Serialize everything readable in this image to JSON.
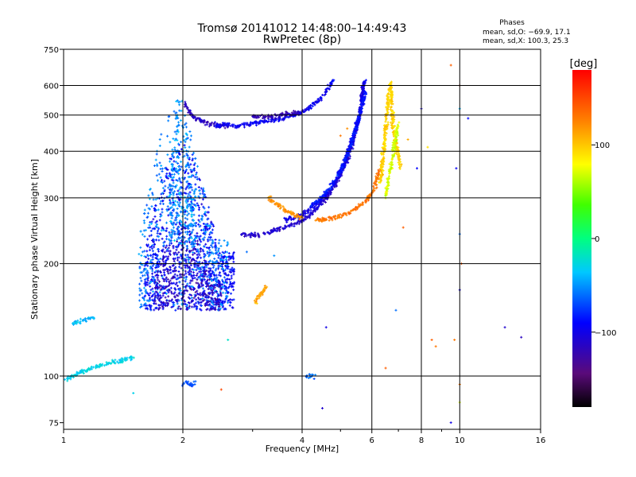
{
  "chart_data": {
    "type": "scatter",
    "title": "Tromsø 20141012 14:48:00–14:49:43",
    "subtitle": "RwPretec (8p)",
    "xlabel": "Frequency [MHz]",
    "ylabel": "Stationary phase Virtual Height [km]",
    "x_scale": "log",
    "y_scale": "log",
    "xlim": [
      1,
      16
    ],
    "ylim": [
      72,
      750
    ],
    "x_ticks": [
      1,
      2,
      4,
      6,
      8,
      10,
      16
    ],
    "y_ticks": [
      75,
      100,
      200,
      300,
      400,
      500,
      600,
      750
    ],
    "x_minor_ticks": [
      3,
      5,
      7,
      9
    ],
    "grid": true,
    "stats": {
      "header": "Phases",
      "line_o": "mean, sd,O: −69.9, 17.1",
      "line_x": "mean, sd,X: 100.3, 25.3"
    },
    "colorbar": {
      "label": "[deg]",
      "range": [
        -180,
        180
      ],
      "ticks": [
        100,
        0,
        -100
      ],
      "colormap": "rainbow (black → purple → blue → cyan → green → yellow → orange → red)"
    },
    "traces": [
      {
        "phase": -115,
        "f": [
          2.02,
          2.05,
          2.1,
          2.15,
          2.2,
          2.25,
          2.3,
          2.35,
          2.4,
          2.45,
          2.5,
          2.6
        ],
        "h": [
          540,
          520,
          505,
          490,
          485,
          480,
          475,
          473,
          472,
          470,
          470,
          468
        ]
      },
      {
        "phase": -95,
        "f": [
          2.4,
          2.6,
          2.8,
          3.0,
          3.2,
          3.4,
          3.6,
          3.8,
          4.0,
          4.2,
          4.4,
          4.6,
          4.8
        ],
        "h": [
          470,
          470,
          468,
          475,
          480,
          485,
          490,
          500,
          510,
          525,
          545,
          580,
          620
        ]
      },
      {
        "phase": -120,
        "f": [
          3.0,
          3.2,
          3.4,
          3.6,
          3.8,
          4.0
        ],
        "h": [
          495,
          495,
          497,
          500,
          505,
          510
        ]
      },
      {
        "phase": -110,
        "f": [
          2.8,
          3.0,
          3.2,
          3.4,
          3.6,
          3.8,
          4.0,
          4.2,
          4.4,
          4.6,
          4.8,
          5.0,
          5.2,
          5.4,
          5.6,
          5.7
        ],
        "h": [
          240,
          238,
          240,
          245,
          250,
          255,
          260,
          270,
          285,
          300,
          320,
          345,
          380,
          430,
          500,
          600
        ]
      },
      {
        "phase": -100,
        "f": [
          3.6,
          3.8,
          4.0,
          4.2,
          4.4,
          4.6,
          4.8,
          5.0,
          5.2,
          5.4,
          5.6,
          5.75
        ],
        "h": [
          262,
          265,
          270,
          280,
          292,
          305,
          325,
          350,
          390,
          440,
          510,
          620
        ]
      },
      {
        "phase": -85,
        "f": [
          4.2,
          4.4,
          4.6,
          4.8,
          5.0,
          5.2,
          5.4,
          5.6,
          5.8
        ],
        "h": [
          285,
          295,
          310,
          330,
          355,
          390,
          440,
          500,
          580
        ]
      },
      {
        "phase": 120,
        "f": [
          3.3,
          3.4,
          3.5,
          3.6,
          3.7,
          3.8,
          3.9,
          4.0
        ],
        "h": [
          300,
          292,
          285,
          280,
          275,
          270,
          268,
          265
        ]
      },
      {
        "phase": 130,
        "f": [
          4.3,
          4.5,
          4.7,
          4.9,
          5.1,
          5.3,
          5.5,
          5.7,
          5.9,
          6.1,
          6.3
        ],
        "h": [
          262,
          262,
          264,
          266,
          270,
          275,
          282,
          290,
          300,
          320,
          360
        ]
      },
      {
        "phase": 110,
        "f": [
          3.05,
          3.1,
          3.15,
          3.2,
          3.25
        ],
        "h": [
          158,
          162,
          166,
          170,
          174
        ]
      },
      {
        "phase": 95,
        "f": [
          6.3,
          6.35,
          6.4,
          6.45,
          6.5,
          6.55,
          6.6,
          6.65,
          6.7,
          6.75,
          6.8,
          6.9,
          7.0,
          7.1
        ],
        "h": [
          330,
          350,
          380,
          420,
          460,
          500,
          540,
          580,
          610,
          520,
          460,
          420,
          390,
          360
        ]
      },
      {
        "phase": 70,
        "f": [
          6.5,
          6.6,
          6.7,
          6.8,
          6.9,
          7.0
        ],
        "h": [
          300,
          330,
          360,
          400,
          440,
          480
        ]
      },
      {
        "phase": -40,
        "f": [
          1.05,
          1.1,
          1.15,
          1.2
        ],
        "h": [
          138,
          140,
          142,
          144
        ]
      },
      {
        "phase": -30,
        "f": [
          1.0,
          1.05,
          1.1,
          1.15,
          1.2,
          1.3,
          1.4,
          1.5
        ],
        "h": [
          98,
          100,
          102,
          104,
          106,
          108,
          110,
          112
        ]
      },
      {
        "phase": -60,
        "f": [
          4.1,
          4.2,
          4.3
        ],
        "h": [
          100,
          100,
          100
        ]
      },
      {
        "phase": -70,
        "f": [
          2.0,
          2.05,
          2.1,
          2.15
        ],
        "h": [
          95,
          96,
          94,
          97
        ]
      }
    ],
    "clusters": [
      {
        "phase": -90,
        "f_range": [
          1.6,
          2.7
        ],
        "h_range": [
          150,
          420
        ],
        "n": 900
      },
      {
        "phase": -55,
        "f_range": [
          1.55,
          2.6
        ],
        "h_range": [
          150,
          520
        ],
        "n": 500
      },
      {
        "phase": -115,
        "f_range": [
          1.7,
          2.5
        ],
        "h_range": [
          150,
          260
        ],
        "n": 350
      },
      {
        "phase": -50,
        "f_range": [
          1.85,
          2.15
        ],
        "h_range": [
          220,
          610
        ],
        "n": 250
      }
    ],
    "scatter_points": [
      {
        "f": 10.0,
        "h": 600,
        "phase": 160
      },
      {
        "f": 9.5,
        "h": 680,
        "phase": 140
      },
      {
        "f": 10.0,
        "h": 520,
        "phase": -40
      },
      {
        "f": 9.8,
        "h": 360,
        "phase": -95
      },
      {
        "f": 10.0,
        "h": 240,
        "phase": -60
      },
      {
        "f": 10.0,
        "h": 170,
        "phase": -100
      },
      {
        "f": 10.1,
        "h": 200,
        "phase": 140
      },
      {
        "f": 9.7,
        "h": 125,
        "phase": 130
      },
      {
        "f": 10.0,
        "h": 95,
        "phase": 130
      },
      {
        "f": 10.0,
        "h": 85,
        "phase": 70
      },
      {
        "f": 9.5,
        "h": 75,
        "phase": -100
      },
      {
        "f": 13.0,
        "h": 135,
        "phase": -110
      },
      {
        "f": 14.3,
        "h": 127,
        "phase": -115
      },
      {
        "f": 8.5,
        "h": 125,
        "phase": 140
      },
      {
        "f": 8.7,
        "h": 120,
        "phase": 130
      },
      {
        "f": 8.0,
        "h": 520,
        "phase": -105
      },
      {
        "f": 7.8,
        "h": 360,
        "phase": -90
      },
      {
        "f": 8.3,
        "h": 410,
        "phase": 90
      },
      {
        "f": 4.5,
        "h": 82,
        "phase": -110
      },
      {
        "f": 4.6,
        "h": 135,
        "phase": -100
      },
      {
        "f": 6.5,
        "h": 105,
        "phase": 140
      },
      {
        "f": 2.5,
        "h": 92,
        "phase": 150
      },
      {
        "f": 1.5,
        "h": 90,
        "phase": -30
      },
      {
        "f": 2.6,
        "h": 125,
        "phase": -20
      },
      {
        "f": 3.4,
        "h": 210,
        "phase": -50
      },
      {
        "f": 2.9,
        "h": 215,
        "phase": -60
      },
      {
        "f": 7.4,
        "h": 430,
        "phase": 110
      },
      {
        "f": 7.2,
        "h": 250,
        "phase": 140
      },
      {
        "f": 6.9,
        "h": 150,
        "phase": -60
      },
      {
        "f": 10.5,
        "h": 490,
        "phase": -90
      },
      {
        "f": 5.2,
        "h": 460,
        "phase": 120
      },
      {
        "f": 5.0,
        "h": 440,
        "phase": 130
      }
    ]
  }
}
